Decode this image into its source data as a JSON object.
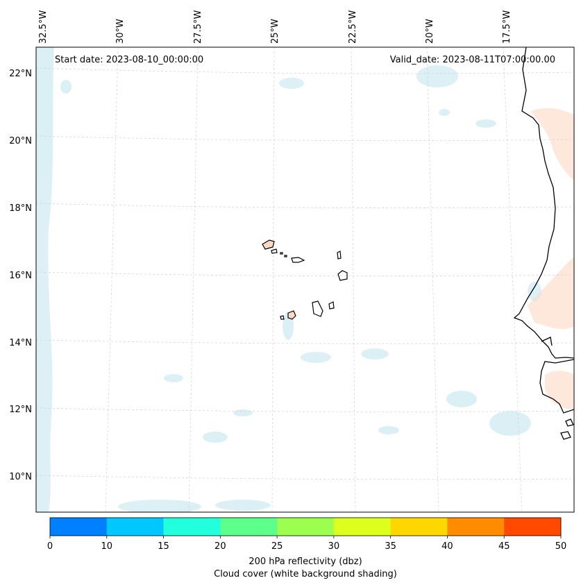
{
  "header": {
    "start_date": "Start date: 2023-08-10_00:00:00",
    "valid_date": "Valid_date: 2023-08-11T07:00:00.00"
  },
  "map": {
    "longitude_labels": [
      "32.5°W",
      "30°W",
      "27.5°W",
      "25°W",
      "22.5°W",
      "20°W",
      "17.5°W"
    ],
    "latitude_labels": [
      "22°N",
      "20°N",
      "18°N",
      "16°N",
      "14°N",
      "12°N",
      "10°N"
    ]
  },
  "colorbar": {
    "ticks": [
      "0",
      "10",
      "15",
      "20",
      "25",
      "30",
      "35",
      "40",
      "45",
      "50"
    ],
    "colors": [
      "#0080ff",
      "#00c8ff",
      "#22ffdd",
      "#5cff8a",
      "#9cff50",
      "#dcff1e",
      "#ffd700",
      "#ff8c00",
      "#ff4a00"
    ],
    "label_line1": "200 hPa reflectivity (dbz)",
    "label_line2": "Cloud cover (white background shading)"
  }
}
